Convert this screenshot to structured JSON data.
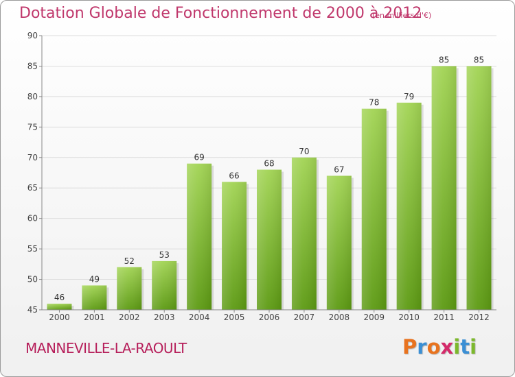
{
  "header": {
    "title": "Dotation Globale de Fonctionnement de 2000 à 2012",
    "unit_note": "(en milliers d'€)"
  },
  "footer": {
    "place_name": "MANNEVILLE-LA-RAOULT",
    "brand_logo": "Proxiti"
  },
  "colors": {
    "title": "#c0386c",
    "place_name": "#b61e5a",
    "bar_top": "#a2d454",
    "bar_bottom": "#5c9a12",
    "logo_letters": [
      "#e8731f",
      "#3b8fd4",
      "#e8731f",
      "#d42a6a",
      "#7cb82c",
      "#3b8fd4",
      "#7cb82c"
    ]
  },
  "chart_data": {
    "type": "bar",
    "categories": [
      "2000",
      "2001",
      "2002",
      "2003",
      "2004",
      "2005",
      "2006",
      "2007",
      "2008",
      "2009",
      "2010",
      "2011",
      "2012"
    ],
    "values": [
      46,
      49,
      52,
      53,
      69,
      66,
      68,
      70,
      67,
      78,
      79,
      85,
      85
    ],
    "title": "Dotation Globale de Fonctionnement de 2000 à 2012",
    "xlabel": "",
    "ylabel": "",
    "ylim": [
      45,
      90
    ],
    "yticks": [
      45,
      50,
      55,
      60,
      65,
      70,
      75,
      80,
      85,
      90
    ],
    "grid": true,
    "data_labels": true
  }
}
